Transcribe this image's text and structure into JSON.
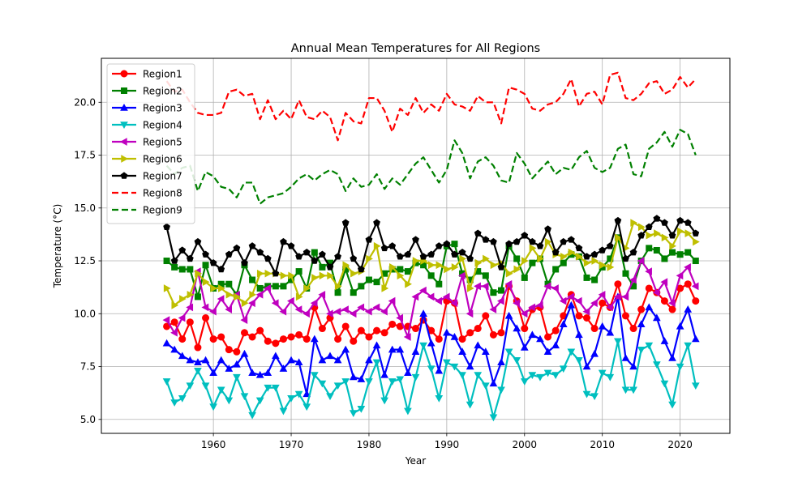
{
  "chart_data": {
    "type": "line",
    "title": "Annual Mean Temperatures for All Regions",
    "xlabel": "Year",
    "ylabel": "Temperature (°C)",
    "xlim": [
      1945.6,
      2026.4
    ],
    "ylim": [
      4.34,
      22.08
    ],
    "xticks": [
      1960,
      1970,
      1980,
      1990,
      2000,
      2010,
      2020
    ],
    "yticks": [
      5.0,
      7.5,
      10.0,
      12.5,
      15.0,
      17.5,
      20.0
    ],
    "xtick_labels": [
      "1960",
      "1970",
      "1980",
      "1990",
      "2000",
      "2010",
      "2020"
    ],
    "ytick_labels": [
      "5.0",
      "7.5",
      "10.0",
      "12.5",
      "15.0",
      "17.5",
      "20.0"
    ],
    "grid": true,
    "legend_position": "upper-left",
    "x": [
      1954,
      1955,
      1956,
      1957,
      1958,
      1959,
      1960,
      1961,
      1962,
      1963,
      1964,
      1965,
      1966,
      1967,
      1968,
      1969,
      1970,
      1971,
      1972,
      1973,
      1974,
      1975,
      1976,
      1977,
      1978,
      1979,
      1980,
      1981,
      1982,
      1983,
      1984,
      1985,
      1986,
      1987,
      1988,
      1989,
      1990,
      1991,
      1992,
      1993,
      1994,
      1995,
      1996,
      1997,
      1998,
      1999,
      2000,
      2001,
      2002,
      2003,
      2004,
      2005,
      2006,
      2007,
      2008,
      2009,
      2010,
      2011,
      2012,
      2013,
      2014,
      2015,
      2016,
      2017,
      2018,
      2019,
      2020,
      2021,
      2022
    ],
    "series": [
      {
        "name": "Region1",
        "color": "#ff0000",
        "style": "solid",
        "marker": "circle",
        "values": [
          9.4,
          9.6,
          8.8,
          9.6,
          8.4,
          9.8,
          8.8,
          8.9,
          8.3,
          8.2,
          9.1,
          8.9,
          9.2,
          8.7,
          8.6,
          8.8,
          8.9,
          9.0,
          8.8,
          10.3,
          9.3,
          9.8,
          8.8,
          9.4,
          8.7,
          9.2,
          8.9,
          9.2,
          9.1,
          9.5,
          9.4,
          9.4,
          9.3,
          9.7,
          9.2,
          8.8,
          10.6,
          10.5,
          8.8,
          9.1,
          9.3,
          9.9,
          9.0,
          9.1,
          11.3,
          10.6,
          9.3,
          10.2,
          10.3,
          8.9,
          9.2,
          9.9,
          10.9,
          9.9,
          9.8,
          9.3,
          10.5,
          10.3,
          11.4,
          9.9,
          9.3,
          10.2,
          11.2,
          11.0,
          10.6,
          10.2,
          11.2,
          11.4,
          10.6
        ]
      },
      {
        "name": "Region2",
        "color": "#008000",
        "style": "solid",
        "marker": "square",
        "values": [
          12.5,
          12.2,
          12.1,
          12.1,
          10.8,
          12.3,
          11.2,
          11.4,
          11.4,
          10.9,
          12.3,
          11.6,
          11.2,
          11.3,
          11.3,
          11.3,
          11.6,
          12.0,
          11.2,
          12.9,
          12.2,
          12.4,
          11.0,
          12.1,
          11.0,
          11.3,
          11.6,
          11.5,
          11.9,
          12.1,
          12.1,
          12.0,
          12.4,
          12.3,
          11.8,
          11.4,
          13.2,
          13.3,
          11.9,
          11.6,
          12.0,
          11.8,
          11.0,
          11.1,
          13.2,
          12.6,
          11.7,
          12.4,
          12.6,
          11.4,
          12.1,
          12.4,
          12.8,
          12.7,
          11.7,
          11.6,
          12.2,
          12.6,
          13.6,
          11.9,
          11.3,
          12.5,
          13.1,
          13.0,
          12.6,
          12.9,
          12.8,
          12.9,
          12.5
        ]
      },
      {
        "name": "Region3",
        "color": "#0000ff",
        "style": "solid",
        "marker": "triangle-up",
        "values": [
          8.6,
          8.3,
          8.0,
          7.8,
          7.7,
          7.8,
          7.2,
          7.8,
          7.4,
          7.6,
          8.1,
          7.2,
          7.1,
          7.2,
          8.0,
          7.4,
          7.8,
          7.7,
          6.2,
          8.8,
          7.8,
          8.0,
          7.8,
          8.3,
          7.0,
          6.9,
          7.8,
          8.5,
          7.1,
          8.3,
          8.3,
          7.2,
          8.2,
          10.0,
          8.6,
          7.3,
          9.1,
          8.9,
          8.2,
          7.5,
          8.5,
          8.2,
          6.7,
          7.7,
          9.9,
          9.3,
          8.4,
          9.0,
          8.8,
          8.2,
          8.5,
          9.5,
          10.4,
          9.0,
          7.5,
          8.1,
          9.4,
          9.1,
          10.8,
          7.9,
          7.5,
          9.5,
          10.3,
          9.8,
          8.7,
          7.9,
          9.4,
          10.2,
          8.8
        ]
      },
      {
        "name": "Region4",
        "color": "#00bfbf",
        "style": "solid",
        "marker": "triangle-down",
        "values": [
          6.8,
          5.8,
          6.0,
          6.6,
          7.3,
          6.6,
          5.6,
          6.4,
          5.9,
          7.0,
          6.1,
          5.2,
          5.9,
          6.5,
          6.5,
          5.4,
          6.0,
          6.2,
          5.6,
          7.1,
          6.7,
          6.1,
          6.6,
          6.8,
          5.3,
          5.5,
          6.8,
          7.7,
          5.9,
          6.8,
          6.9,
          5.4,
          7.0,
          8.5,
          7.4,
          6.0,
          7.7,
          7.5,
          7.1,
          5.7,
          7.1,
          6.6,
          5.1,
          6.4,
          8.2,
          7.8,
          6.8,
          7.1,
          7.0,
          7.2,
          7.1,
          7.4,
          8.2,
          7.8,
          6.2,
          6.1,
          7.2,
          7.0,
          8.7,
          6.4,
          6.4,
          8.3,
          8.5,
          7.6,
          6.7,
          5.7,
          7.5,
          8.5,
          6.6
        ]
      },
      {
        "name": "Region5",
        "color": "#bf00bf",
        "style": "solid",
        "marker": "triangle-left",
        "values": [
          9.7,
          9.1,
          9.8,
          10.3,
          12.0,
          10.3,
          10.1,
          10.7,
          10.2,
          10.9,
          9.7,
          10.5,
          10.9,
          11.2,
          10.5,
          10.1,
          10.6,
          10.2,
          10.0,
          10.5,
          10.9,
          10.0,
          10.1,
          10.2,
          10.0,
          10.3,
          10.1,
          10.3,
          10.1,
          10.6,
          9.8,
          8.9,
          10.8,
          11.1,
          10.8,
          10.6,
          10.8,
          10.5,
          11.8,
          10.0,
          11.3,
          11.3,
          10.2,
          10.6,
          11.4,
          10.5,
          10.0,
          10.3,
          10.4,
          11.3,
          11.2,
          10.6,
          10.8,
          10.6,
          10.1,
          10.5,
          10.9,
          10.3,
          10.8,
          10.8,
          11.6,
          12.5,
          12.0,
          11.0,
          11.5,
          10.5,
          11.8,
          12.2,
          11.3
        ]
      },
      {
        "name": "Region6",
        "color": "#bfbf00",
        "style": "solid",
        "marker": "triangle-right",
        "values": [
          11.2,
          10.4,
          10.7,
          10.9,
          11.9,
          11.5,
          11.2,
          11.2,
          10.9,
          10.8,
          10.5,
          10.9,
          11.9,
          11.9,
          11.9,
          11.8,
          11.8,
          10.8,
          11.2,
          11.7,
          11.8,
          11.8,
          11.3,
          12.3,
          11.9,
          12.0,
          12.6,
          13.2,
          11.2,
          12.2,
          11.8,
          11.4,
          12.5,
          12.5,
          12.3,
          12.3,
          12.1,
          12.2,
          12.6,
          11.2,
          12.4,
          12.6,
          12.3,
          12.4,
          11.9,
          12.1,
          12.5,
          13.1,
          12.6,
          13.4,
          12.8,
          12.7,
          12.9,
          12.7,
          12.4,
          12.5,
          12.3,
          12.2,
          13.6,
          13.1,
          14.3,
          14.1,
          13.7,
          13.8,
          13.6,
          13.2,
          13.9,
          13.8,
          13.4
        ]
      },
      {
        "name": "Region7",
        "color": "#000000",
        "style": "solid",
        "marker": "pentagon",
        "values": [
          14.1,
          12.5,
          13.0,
          12.6,
          13.4,
          12.8,
          12.4,
          12.1,
          12.8,
          13.1,
          12.4,
          13.2,
          12.9,
          12.6,
          11.9,
          13.4,
          13.2,
          12.7,
          12.9,
          12.5,
          12.8,
          12.2,
          12.7,
          14.3,
          12.6,
          12.1,
          13.5,
          14.3,
          13.1,
          13.2,
          12.7,
          12.8,
          13.5,
          12.7,
          12.8,
          13.2,
          13.3,
          12.8,
          12.9,
          12.6,
          13.8,
          13.5,
          13.4,
          12.2,
          13.3,
          13.4,
          13.7,
          13.4,
          13.2,
          14.0,
          12.9,
          13.4,
          13.5,
          13.1,
          12.7,
          12.8,
          13.0,
          13.2,
          14.4,
          12.6,
          12.9,
          13.7,
          14.1,
          14.5,
          14.3,
          13.7,
          14.4,
          14.3,
          13.8
        ]
      },
      {
        "name": "Region8",
        "color": "#ff0000",
        "style": "dashed",
        "marker": "none",
        "values": [
          21.0,
          20.5,
          20.6,
          20.0,
          19.5,
          19.4,
          19.4,
          19.5,
          20.5,
          20.6,
          20.3,
          20.4,
          19.2,
          20.1,
          19.2,
          19.6,
          19.2,
          20.1,
          19.3,
          19.2,
          19.6,
          19.3,
          18.2,
          19.5,
          19.1,
          19.0,
          20.2,
          20.2,
          19.6,
          18.6,
          19.7,
          19.4,
          20.2,
          19.5,
          19.9,
          19.6,
          20.4,
          19.9,
          19.8,
          19.6,
          20.3,
          20.0,
          20.0,
          19.0,
          20.7,
          20.6,
          20.4,
          19.7,
          19.6,
          19.9,
          20.0,
          20.4,
          21.1,
          19.8,
          20.4,
          20.5,
          19.9,
          21.3,
          21.4,
          20.2,
          20.1,
          20.4,
          20.9,
          21.0,
          20.4,
          20.6,
          21.2,
          20.7,
          21.1
        ]
      },
      {
        "name": "Region9",
        "color": "#008000",
        "style": "dashed",
        "marker": "none",
        "values": [
          17.0,
          16.6,
          16.9,
          17.0,
          15.8,
          16.7,
          16.5,
          16.0,
          15.9,
          15.5,
          16.2,
          16.2,
          15.2,
          15.5,
          15.6,
          15.7,
          16.0,
          16.4,
          16.6,
          16.3,
          16.6,
          16.8,
          16.6,
          15.8,
          16.4,
          16.0,
          16.1,
          16.6,
          15.9,
          16.4,
          16.1,
          16.6,
          17.1,
          17.4,
          16.8,
          16.2,
          16.8,
          18.2,
          17.6,
          16.4,
          17.2,
          17.4,
          17.0,
          16.3,
          16.2,
          17.6,
          17.1,
          16.4,
          16.8,
          17.2,
          16.6,
          16.9,
          16.8,
          17.4,
          17.7,
          16.9,
          16.7,
          16.9,
          17.8,
          18.0,
          16.6,
          16.5,
          17.8,
          18.1,
          18.6,
          17.9,
          18.7,
          18.5,
          17.5
        ]
      }
    ]
  }
}
